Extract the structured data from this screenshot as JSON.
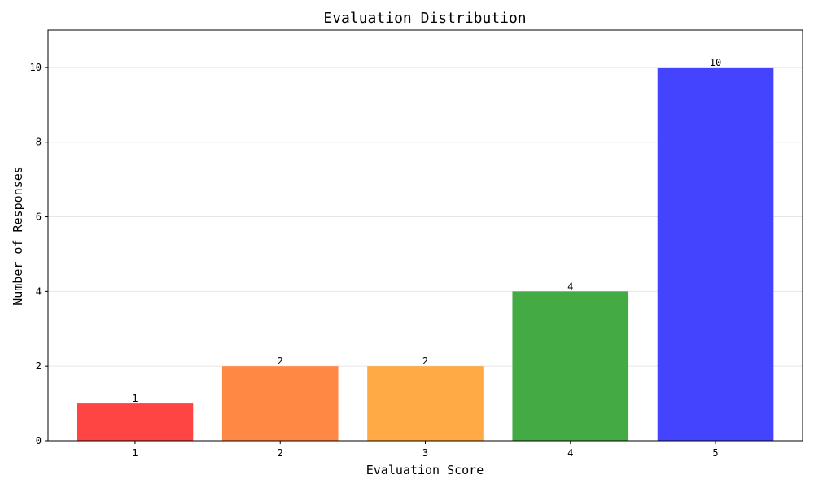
{
  "chart_data": {
    "type": "bar",
    "title": "Evaluation Distribution",
    "xlabel": "Evaluation Score",
    "ylabel": "Number of Responses",
    "categories": [
      "1",
      "2",
      "3",
      "4",
      "5"
    ],
    "values": [
      1,
      2,
      2,
      4,
      10
    ],
    "data_labels": [
      "1",
      "2",
      "2",
      "4",
      "10"
    ],
    "colors": [
      "#ff4444",
      "#ff8844",
      "#ffaa44",
      "#44aa44",
      "#4444ff"
    ],
    "ylim": [
      0,
      11
    ],
    "yticks": [
      0,
      2,
      4,
      6,
      8,
      10
    ],
    "ytick_labels": [
      "0",
      "2",
      "4",
      "6",
      "8",
      "10"
    ],
    "grid": true,
    "grid_axis": "y"
  }
}
